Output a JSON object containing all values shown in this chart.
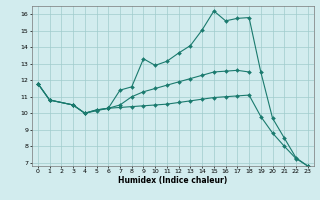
{
  "xlabel": "Humidex (Indice chaleur)",
  "xlim": [
    -0.5,
    23.5
  ],
  "ylim": [
    6.8,
    16.5
  ],
  "yticks": [
    7,
    8,
    9,
    10,
    11,
    12,
    13,
    14,
    15,
    16
  ],
  "xticks": [
    0,
    1,
    2,
    3,
    4,
    5,
    6,
    7,
    8,
    9,
    10,
    11,
    12,
    13,
    14,
    15,
    16,
    17,
    18,
    19,
    20,
    21,
    22,
    23
  ],
  "line_color": "#1a7a6e",
  "bg_color": "#d2ecee",
  "grid_color": "#a0cccc",
  "line1_x": [
    0,
    1,
    3,
    4,
    5,
    6,
    7,
    8,
    9,
    10,
    11,
    12,
    13,
    14,
    15,
    16,
    17,
    18,
    19,
    20,
    21,
    22,
    23
  ],
  "line1_y": [
    11.8,
    10.8,
    10.5,
    10.0,
    10.2,
    10.3,
    11.4,
    11.6,
    13.3,
    12.9,
    13.15,
    13.65,
    14.1,
    15.05,
    16.2,
    15.6,
    15.75,
    15.8,
    12.5,
    9.7,
    8.5,
    7.3,
    6.8
  ],
  "line2_x": [
    0,
    1,
    3,
    4,
    5,
    6,
    7,
    8,
    9,
    10,
    11,
    12,
    13,
    14,
    15,
    16,
    17,
    18
  ],
  "line2_y": [
    11.8,
    10.8,
    10.5,
    10.0,
    10.2,
    10.3,
    10.5,
    11.0,
    11.3,
    11.5,
    11.7,
    11.9,
    12.1,
    12.3,
    12.5,
    12.55,
    12.6,
    12.5
  ],
  "line3_x": [
    0,
    1,
    3,
    4,
    5,
    6,
    7,
    8,
    9,
    10,
    11,
    12,
    13,
    14,
    15,
    16,
    17,
    18,
    19,
    20,
    21,
    22,
    23
  ],
  "line3_y": [
    11.8,
    10.8,
    10.5,
    10.0,
    10.15,
    10.3,
    10.35,
    10.4,
    10.45,
    10.5,
    10.55,
    10.65,
    10.75,
    10.85,
    10.95,
    11.0,
    11.05,
    11.1,
    9.8,
    8.8,
    8.0,
    7.25,
    6.8
  ]
}
